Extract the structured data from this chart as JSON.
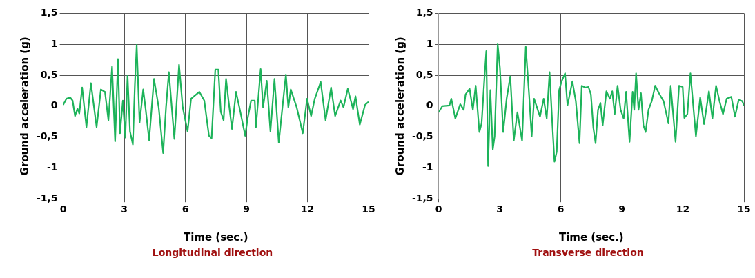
{
  "chart_data": [
    {
      "type": "line",
      "xlabel": "Time (sec.)",
      "ylabel": "Ground acceleration (g)",
      "annotations": [
        "Longitudinal direction"
      ],
      "xlim": [
        0,
        15
      ],
      "xticks": [
        0,
        3,
        6,
        9,
        12,
        15
      ],
      "ylim": [
        -1.5,
        1.5
      ],
      "yticks": [
        {
          "value": -1.5,
          "label": "-1,5"
        },
        -1,
        {
          "value": -0.5,
          "label": "-0,5"
        },
        0,
        {
          "value": 0.5,
          "label": "0,5"
        },
        1,
        {
          "value": 1.5,
          "label": "1,5"
        }
      ],
      "grid": true,
      "marker": "none",
      "series": [
        {
          "color": "#1db35a",
          "x": [
            0,
            0.16,
            0.34,
            0.46,
            0.58,
            0.7,
            0.79,
            0.93,
            1.14,
            1.36,
            1.64,
            1.85,
            2.05,
            2.22,
            2.4,
            2.55,
            2.69,
            2.79,
            2.93,
            3.05,
            3.16,
            3.28,
            3.42,
            3.52,
            3.61,
            3.75,
            3.93,
            4.05,
            4.22,
            4.46,
            4.69,
            4.91,
            5.05,
            5.19,
            5.46,
            5.69,
            5.87,
            6.11,
            6.28,
            6.69,
            6.93,
            7.16,
            7.29,
            7.47,
            7.62,
            7.74,
            7.88,
            8.0,
            8.12,
            8.29,
            8.49,
            8.7,
            8.94,
            9.06,
            9.23,
            9.41,
            9.47,
            9.7,
            9.82,
            10.0,
            10.18,
            10.38,
            10.59,
            10.77,
            10.94,
            11.06,
            11.18,
            11.47,
            11.77,
            11.98,
            12.18,
            12.36,
            12.65,
            12.89,
            13.16,
            13.36,
            13.63,
            13.77,
            13.98,
            14.24,
            14.36,
            14.57,
            14.83,
            15.0
          ],
          "values": [
            0.02,
            0.12,
            0.14,
            0.09,
            -0.16,
            -0.04,
            -0.12,
            0.3,
            -0.34,
            0.37,
            -0.34,
            0.27,
            0.23,
            -0.23,
            0.64,
            -0.57,
            0.76,
            -0.44,
            0.09,
            -0.51,
            0.5,
            -0.41,
            -0.62,
            0.34,
            0.99,
            -0.27,
            0.27,
            -0.05,
            -0.55,
            0.44,
            -0.02,
            -0.76,
            -0.02,
            0.55,
            -0.53,
            0.67,
            -0.02,
            -0.41,
            0.12,
            0.23,
            0.09,
            -0.48,
            -0.52,
            0.59,
            0.59,
            -0.09,
            -0.23,
            0.44,
            0.09,
            -0.37,
            0.23,
            -0.09,
            -0.48,
            -0.2,
            0.09,
            0.09,
            -0.34,
            0.6,
            -0.02,
            0.41,
            -0.41,
            0.44,
            -0.59,
            -0.02,
            0.51,
            -0.02,
            0.27,
            -0.02,
            -0.44,
            0.12,
            -0.16,
            0.12,
            0.39,
            -0.23,
            0.3,
            -0.16,
            0.09,
            -0.02,
            0.28,
            -0.05,
            0.16,
            -0.3,
            0.02,
            0.07
          ]
        }
      ]
    },
    {
      "type": "line",
      "xlabel": "Time (sec.)",
      "ylabel": "Ground acceleration (g)",
      "annotations": [
        "Transverse direction"
      ],
      "xlim": [
        0,
        15
      ],
      "xticks": [
        0,
        3,
        6,
        9,
        12,
        15
      ],
      "ylim": [
        -1.5,
        1.5
      ],
      "yticks": [
        {
          "value": -1.5,
          "label": "-1,5"
        },
        -1,
        {
          "value": -0.5,
          "label": "-0,5"
        },
        0,
        {
          "value": 0.5,
          "label": "0,5"
        },
        1,
        {
          "value": 1.5,
          "label": "1,5"
        }
      ],
      "grid": true,
      "marker": "none",
      "series": [
        {
          "color": "#1db35a",
          "x": [
            0,
            0.18,
            0.53,
            0.62,
            0.82,
            1.06,
            1.23,
            1.32,
            1.52,
            1.68,
            1.82,
            2.0,
            2.11,
            2.26,
            2.34,
            2.43,
            2.54,
            2.66,
            2.75,
            2.9,
            3.01,
            3.17,
            3.34,
            3.52,
            3.69,
            3.87,
            4.1,
            4.28,
            4.45,
            4.57,
            4.69,
            4.98,
            5.16,
            5.31,
            5.45,
            5.57,
            5.69,
            5.8,
            5.92,
            6.04,
            6.21,
            6.33,
            6.57,
            6.74,
            6.92,
            7.03,
            7.21,
            7.36,
            7.48,
            7.6,
            7.71,
            7.83,
            7.95,
            8.06,
            8.24,
            8.41,
            8.53,
            8.65,
            8.79,
            8.94,
            9.09,
            9.21,
            9.38,
            9.53,
            9.61,
            9.7,
            9.82,
            9.94,
            10.06,
            10.17,
            10.31,
            10.47,
            10.64,
            10.82,
            11.05,
            11.29,
            11.4,
            11.64,
            11.81,
            11.99,
            12.07,
            12.22,
            12.37,
            12.64,
            12.85,
            13.04,
            13.28,
            13.45,
            13.63,
            13.8,
            13.97,
            14.15,
            14.38,
            14.56,
            14.74,
            14.92,
            15.0
          ],
          "values": [
            -0.1,
            0,
            0.01,
            0.12,
            -0.2,
            0.03,
            -0.06,
            0.19,
            0.28,
            -0.06,
            0.33,
            -0.42,
            -0.28,
            0.51,
            0.89,
            -0.97,
            0.26,
            -0.7,
            -0.49,
            1.0,
            0.62,
            -0.42,
            0.12,
            0.48,
            -0.56,
            -0.1,
            -0.56,
            0.96,
            0.15,
            -0.49,
            0.12,
            -0.17,
            0.12,
            -0.2,
            0.55,
            -0.2,
            -0.9,
            -0.74,
            0.26,
            0.4,
            0.53,
            0.01,
            0.4,
            0.08,
            -0.6,
            0.33,
            0.3,
            0.31,
            0.19,
            -0.35,
            -0.6,
            -0.06,
            0.05,
            -0.31,
            0.24,
            0.12,
            0.24,
            -0.13,
            0.33,
            -0.06,
            -0.2,
            0.23,
            -0.58,
            0.23,
            -0.06,
            0.53,
            -0.06,
            0.21,
            -0.31,
            -0.42,
            -0.06,
            0.08,
            0.33,
            0.21,
            0.08,
            -0.28,
            0.33,
            -0.58,
            0.33,
            0.31,
            -0.19,
            -0.13,
            0.53,
            -0.49,
            0.14,
            -0.29,
            0.24,
            -0.2,
            0.33,
            0.08,
            -0.13,
            0.12,
            0.15,
            -0.17,
            0.1,
            0.08,
            0.01
          ]
        }
      ]
    }
  ]
}
